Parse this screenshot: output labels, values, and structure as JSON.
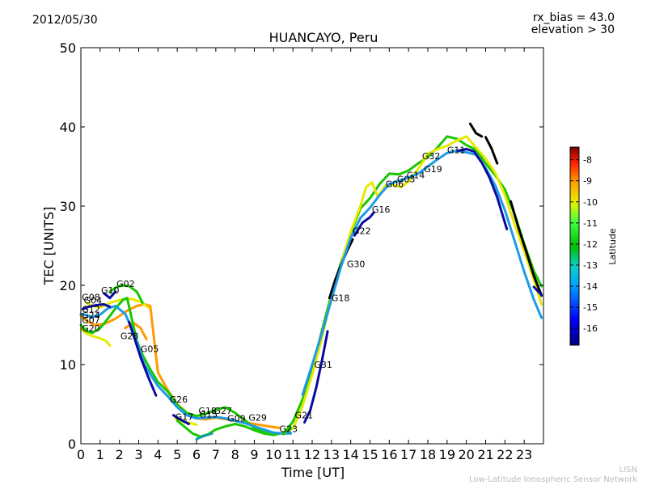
{
  "header": {
    "date": "2012/05/30",
    "rx_bias": "rx_bias = 43.0",
    "elevation": "elevation > 30"
  },
  "footer": {
    "line1": "LISN",
    "line2": "Low-Latitude Ionospheric Sensor Network"
  },
  "colors": {
    "north": "#d70000",
    "orange": "#ff9a00",
    "yellow": "#e8e800",
    "green": "#19c800",
    "teal": "#0ca0a0",
    "cyan": "#1e9be6",
    "blue": "#0a0aa0"
  },
  "chart_data": {
    "type": "line",
    "title": "HUANCAYO, Peru",
    "xlabel": "Time [UT]",
    "ylabel": "TEC [UNITS]",
    "xlim": [
      0,
      24
    ],
    "ylim": [
      0,
      50
    ],
    "x_ticks": [
      "0",
      "1",
      "2",
      "3",
      "4",
      "5",
      "6",
      "7",
      "8",
      "9",
      "10",
      "11",
      "12",
      "13",
      "14",
      "15",
      "16",
      "17",
      "18",
      "19",
      "20",
      "21",
      "22",
      "23"
    ],
    "y_ticks": [
      "0",
      "10",
      "20",
      "30",
      "40",
      "50"
    ],
    "colorbar": {
      "label": "Latitude",
      "range": [
        -16.8,
        -7.4
      ],
      "ticks": [
        "-8",
        "-9",
        "-10",
        "-11",
        "-12",
        "-13",
        "-14",
        "-15",
        "-16"
      ]
    },
    "satellite_labels": [
      {
        "name": "G08",
        "x": 0.05,
        "y": 18.1
      },
      {
        "name": "G04",
        "x": 0.15,
        "y": 17.7
      },
      {
        "name": "G10",
        "x": 1.05,
        "y": 19.0
      },
      {
        "name": "G02",
        "x": 1.85,
        "y": 19.8
      },
      {
        "name": "G12",
        "x": 0.05,
        "y": 16.6
      },
      {
        "name": "G24",
        "x": 0.05,
        "y": 15.8
      },
      {
        "name": "G07",
        "x": 0.05,
        "y": 15.2
      },
      {
        "name": "G20",
        "x": 0.05,
        "y": 14.2
      },
      {
        "name": "G28",
        "x": 2.05,
        "y": 13.2
      },
      {
        "name": "G05",
        "x": 3.1,
        "y": 11.6
      },
      {
        "name": "G26",
        "x": 4.6,
        "y": 5.2
      },
      {
        "name": "G17",
        "x": 4.9,
        "y": 3.0
      },
      {
        "name": "G18",
        "x": 6.1,
        "y": 3.8
      },
      {
        "name": "G15",
        "x": 6.15,
        "y": 3.3
      },
      {
        "name": "G27",
        "x": 6.9,
        "y": 3.8
      },
      {
        "name": "G09",
        "x": 7.6,
        "y": 2.8
      },
      {
        "name": "G29",
        "x": 8.7,
        "y": 2.9
      },
      {
        "name": "G23",
        "x": 10.3,
        "y": 1.5
      },
      {
        "name": "G21",
        "x": 11.1,
        "y": 3.2
      },
      {
        "name": "G31",
        "x": 12.1,
        "y": 9.6
      },
      {
        "name": "G18",
        "x": 13.0,
        "y": 18.0
      },
      {
        "name": "G30",
        "x": 13.8,
        "y": 22.3
      },
      {
        "name": "G22",
        "x": 14.1,
        "y": 26.5
      },
      {
        "name": "G16",
        "x": 15.1,
        "y": 29.2
      },
      {
        "name": "G06",
        "x": 15.8,
        "y": 32.4
      },
      {
        "name": "G03",
        "x": 16.4,
        "y": 33.0
      },
      {
        "name": "G14",
        "x": 16.9,
        "y": 33.5
      },
      {
        "name": "G19",
        "x": 17.8,
        "y": 34.3
      },
      {
        "name": "G32",
        "x": 17.7,
        "y": 35.9
      },
      {
        "name": "G11",
        "x": 19.0,
        "y": 36.7
      }
    ],
    "series": [
      {
        "color_key": "orange",
        "x": [
          0,
          0.3,
          0.7,
          1.2,
          1.8,
          2.4,
          2.9,
          3.3,
          3.6,
          4.0,
          4.5,
          5.0,
          5.5,
          6.0,
          6.5,
          7.0,
          7.5,
          8.0,
          8.5,
          9.0,
          9.5,
          10.0,
          10.3
        ],
        "y": [
          16.2,
          15.5,
          15.0,
          15.1,
          15.8,
          16.8,
          17.4,
          17.6,
          17.4,
          9.0,
          6.8,
          5.0,
          3.9,
          3.2,
          3.1,
          3.3,
          3.1,
          2.9,
          2.7,
          2.5,
          2.3,
          2.1,
          2.0
        ]
      },
      {
        "color_key": "orange",
        "x": [
          2.3,
          2.7,
          3.1,
          3.4
        ],
        "y": [
          14.6,
          15.3,
          14.6,
          13.2
        ]
      },
      {
        "color_key": "yellow",
        "x": [
          0.3,
          0.6,
          1.0,
          1.5,
          2.1,
          2.6,
          3.1,
          3.5
        ],
        "y": [
          17.8,
          17.4,
          17.2,
          17.8,
          18.2,
          18.3,
          17.9,
          17.2
        ]
      },
      {
        "color_key": "yellow",
        "x": [
          0,
          0.3,
          0.6,
          1.0,
          1.3,
          1.5
        ],
        "y": [
          14.5,
          13.9,
          13.6,
          13.3,
          13.0,
          12.4
        ]
      },
      {
        "color_key": "yellow",
        "x": [
          4.9,
          5.3,
          5.7,
          6.0
        ],
        "y": [
          3.2,
          2.8,
          2.6,
          2.4
        ]
      },
      {
        "color_key": "green",
        "x": [
          0,
          0.3,
          0.6,
          1.0,
          1.4,
          1.8,
          2.2,
          2.4,
          2.9,
          3.2,
          3.6,
          4.0,
          4.5,
          5.0,
          5.5,
          6.0,
          6.5,
          7.0,
          7.5,
          8.0,
          8.5,
          9.0,
          9.5,
          10.0
        ],
        "y": [
          15.0,
          14.2,
          14.0,
          14.6,
          15.8,
          17.1,
          18.2,
          18.4,
          13.0,
          11.2,
          9.4,
          7.8,
          6.6,
          4.9,
          3.9,
          3.5,
          3.8,
          4.3,
          4.6,
          3.9,
          3.0,
          2.0,
          1.6,
          1.4
        ]
      },
      {
        "color_key": "green",
        "x": [
          1.5,
          1.8,
          2.1,
          2.5,
          2.9,
          3.2
        ],
        "y": [
          19.2,
          19.7,
          20.0,
          19.9,
          19.2,
          17.8
        ]
      },
      {
        "color_key": "green",
        "x": [
          5.0,
          5.4,
          5.8,
          6.2,
          6.6,
          7.0,
          7.5,
          8.0,
          8.5,
          9.0,
          9.5,
          10.0,
          10.5,
          11.0
        ],
        "y": [
          2.9,
          2.1,
          1.3,
          0.9,
          1.2,
          1.8,
          2.2,
          2.5,
          2.2,
          1.7,
          1.3,
          1.1,
          1.4,
          2.0
        ]
      },
      {
        "color_key": "teal",
        "x": [
          6.0,
          6.4,
          6.8
        ],
        "y": [
          0.6,
          1.0,
          1.3
        ]
      },
      {
        "color_key": "cyan",
        "x": [
          0,
          0.3,
          0.6,
          1.0,
          1.4,
          1.8,
          2.3,
          2.6,
          3.0,
          3.3,
          3.7,
          4.0,
          4.5,
          5.0,
          5.5,
          6.0,
          6.5,
          7.0,
          7.5,
          8.0,
          8.5,
          9.0,
          9.5,
          10.0,
          10.5,
          10.9
        ],
        "y": [
          16.4,
          16.2,
          16.0,
          16.3,
          17.1,
          17.4,
          16.4,
          14.8,
          12.2,
          10.0,
          8.4,
          7.3,
          6.0,
          4.6,
          3.6,
          3.2,
          3.3,
          3.4,
          3.2,
          2.9,
          2.6,
          2.2,
          1.8,
          1.4,
          1.3,
          1.3
        ]
      },
      {
        "color_key": "blue",
        "x": [
          0.1,
          0.4,
          0.8,
          1.2,
          1.5
        ],
        "y": [
          17.0,
          17.3,
          17.5,
          17.6,
          17.3
        ]
      },
      {
        "color_key": "blue",
        "x": [
          2.5,
          2.8,
          3.1,
          3.5,
          3.9
        ],
        "y": [
          15.4,
          13.2,
          10.9,
          8.4,
          6.1
        ]
      },
      {
        "color_key": "blue",
        "x": [
          1.2,
          1.5,
          1.8
        ],
        "y": [
          19.0,
          18.4,
          19.2
        ]
      },
      {
        "color_key": "blue",
        "x": [
          4.8,
          5.2,
          5.6
        ],
        "y": [
          3.6,
          3.0,
          2.5
        ]
      },
      {
        "color_key": "green",
        "x": [
          10.5,
          11.0,
          11.5,
          12.0,
          12.5,
          13.0,
          13.5,
          14.0,
          14.5,
          15.0,
          15.5,
          16.0,
          16.5,
          17.0,
          17.5,
          18.0,
          18.5,
          19.0,
          19.5,
          20.0,
          20.5,
          21.0,
          21.5,
          22.0,
          22.5,
          23.0,
          23.5,
          23.9
        ],
        "y": [
          1.2,
          2.8,
          5.6,
          9.5,
          14.2,
          18.9,
          22.9,
          26.6,
          29.7,
          31.0,
          32.8,
          34.1,
          34.0,
          34.5,
          35.4,
          36.2,
          37.4,
          38.8,
          38.5,
          37.7,
          37.1,
          35.4,
          33.9,
          32.1,
          29.0,
          25.2,
          21.8,
          19.9
        ]
      },
      {
        "color_key": "yellow",
        "x": [
          11.0,
          11.5,
          12.0,
          12.5,
          13.0,
          13.5,
          14.0,
          14.5,
          14.8,
          15.1,
          15.4,
          15.8,
          16.2,
          16.6,
          17.0,
          17.5,
          18.0,
          18.5,
          19.0,
          19.5,
          20.0,
          20.5,
          21.0,
          21.5,
          22.0,
          22.5,
          23.0,
          23.5,
          23.9
        ],
        "y": [
          1.9,
          4.8,
          8.7,
          13.3,
          18.5,
          22.7,
          26.8,
          30.0,
          32.4,
          33.0,
          31.2,
          32.6,
          32.7,
          32.4,
          33.1,
          34.7,
          36.6,
          37.2,
          37.6,
          38.3,
          38.8,
          37.4,
          36.0,
          34.2,
          31.4,
          27.7,
          24.3,
          20.7,
          17.6
        ]
      },
      {
        "color_key": "red",
        "x": [
          12.9,
          13.2,
          13.5,
          13.8,
          14.1
        ],
        "y": [
          18.4,
          20.7,
          22.6,
          24.3,
          25.8
        ]
      },
      {
        "color_key": "red",
        "x": [
          20.2,
          20.5,
          20.8
        ],
        "y": [
          40.4,
          39.2,
          38.8
        ]
      },
      {
        "color_key": "red",
        "x": [
          21.0,
          21.3,
          21.6
        ],
        "y": [
          38.7,
          37.3,
          35.4
        ]
      },
      {
        "color_key": "red",
        "x": [
          22.3,
          22.7,
          23.1,
          23.5,
          23.9
        ],
        "y": [
          30.6,
          27.3,
          24.3,
          21.2,
          18.7
        ]
      },
      {
        "color_key": "cyan",
        "x": [
          11.5,
          12.0,
          12.5,
          13.0,
          13.5,
          14.0,
          14.5,
          15.0,
          15.5,
          16.0,
          16.5,
          17.0,
          17.5,
          18.0,
          18.5,
          19.0,
          19.5,
          20.0,
          20.5,
          21.0,
          21.5,
          22.0,
          22.5,
          23.0,
          23.5,
          23.9
        ],
        "y": [
          6.2,
          10.0,
          13.9,
          18.2,
          22.4,
          26.0,
          28.5,
          29.8,
          31.4,
          32.8,
          33.2,
          33.6,
          34.1,
          35.0,
          35.9,
          36.7,
          37.0,
          36.8,
          36.5,
          34.8,
          32.6,
          29.5,
          25.6,
          21.7,
          18.2,
          15.9
        ]
      },
      {
        "color_key": "blue",
        "x": [
          11.6,
          11.9,
          12.2,
          12.5,
          12.8
        ],
        "y": [
          2.7,
          4.2,
          7.0,
          10.4,
          14.2
        ]
      },
      {
        "color_key": "blue",
        "x": [
          14.2,
          14.6,
          15.0,
          15.2
        ],
        "y": [
          26.3,
          27.9,
          28.6,
          29.2
        ]
      },
      {
        "color_key": "blue",
        "x": [
          19.6,
          20.0,
          20.4,
          20.8,
          21.2,
          21.6,
          22.1
        ],
        "y": [
          37.0,
          37.2,
          36.9,
          35.5,
          33.6,
          31.1,
          27.1
        ]
      },
      {
        "color_key": "blue",
        "x": [
          23.5,
          23.9
        ],
        "y": [
          19.8,
          18.8
        ]
      }
    ]
  }
}
